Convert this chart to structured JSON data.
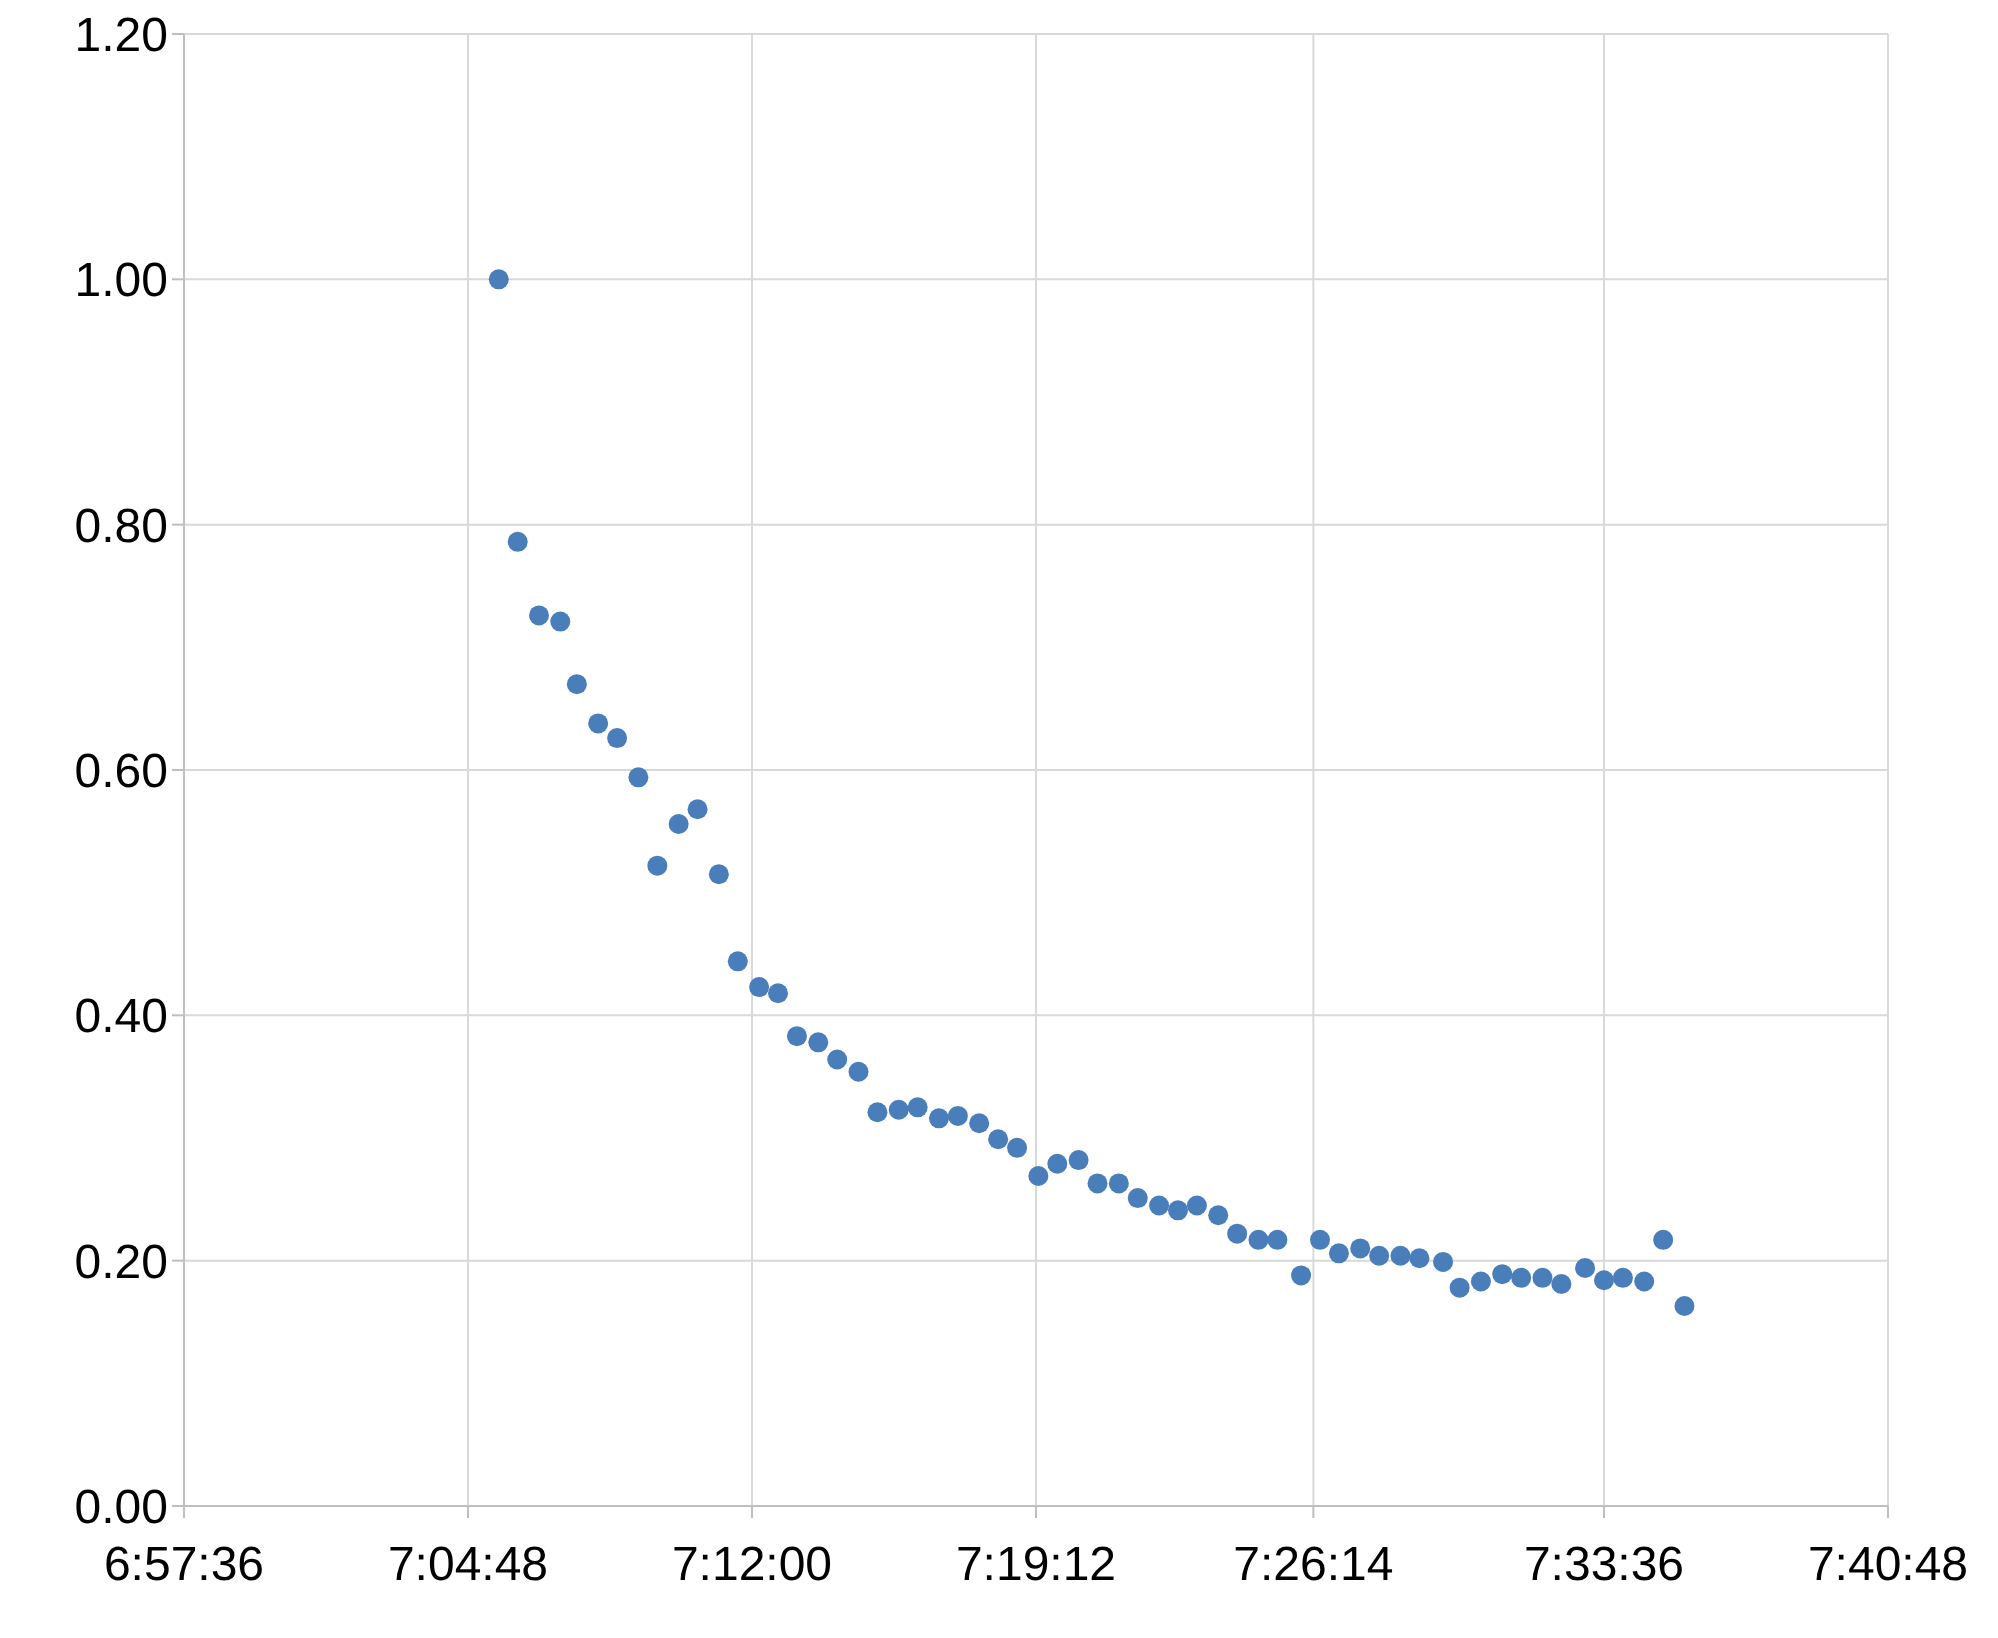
{
  "chart_data": {
    "type": "scatter",
    "marker": "circle",
    "grid": true,
    "xlim": [
      6.96,
      7.68
    ],
    "xticks": [
      {
        "value": 6.96,
        "label": "6:57:36"
      },
      {
        "value": 7.08,
        "label": "7:04:48"
      },
      {
        "value": 7.2,
        "label": "7:12:00"
      },
      {
        "value": 7.32,
        "label": "7:19:12"
      },
      {
        "value": 7.4372,
        "label": "7:26:14"
      },
      {
        "value": 7.56,
        "label": "7:33:36"
      },
      {
        "value": 7.68,
        "label": "7:40:48"
      }
    ],
    "ylim": [
      0,
      1.2
    ],
    "yticks": [
      {
        "value": 0,
        "label": "0.00"
      },
      {
        "value": 0.2,
        "label": "0.20"
      },
      {
        "value": 0.4,
        "label": "0.40"
      },
      {
        "value": 0.6,
        "label": "0.60"
      },
      {
        "value": 0.8,
        "label": "0.80"
      },
      {
        "value": 1,
        "label": "1.00"
      },
      {
        "value": 1.2,
        "label": "1.20"
      }
    ],
    "series": [
      {
        "color": "#4a7ebb",
        "x": [
          7.093,
          7.101,
          7.11,
          7.119,
          7.126,
          7.135,
          7.143,
          7.152,
          7.16,
          7.169,
          7.177,
          7.186,
          7.194,
          7.203,
          7.211,
          7.219,
          7.228,
          7.236,
          7.245,
          7.253,
          7.262,
          7.27,
          7.279,
          7.287,
          7.296,
          7.304,
          7.312,
          7.321,
          7.329,
          7.338,
          7.346,
          7.355,
          7.363,
          7.372,
          7.38,
          7.388,
          7.397,
          7.405,
          7.414,
          7.422,
          7.432,
          7.44,
          7.448,
          7.457,
          7.465,
          7.474,
          7.482,
          7.492,
          7.499,
          7.508,
          7.517,
          7.525,
          7.534,
          7.542,
          7.552,
          7.56,
          7.568,
          7.577,
          7.585,
          7.594
        ],
        "values": [
          1.0,
          0.786,
          0.726,
          0.721,
          0.67,
          0.638,
          0.626,
          0.594,
          0.522,
          0.556,
          0.568,
          0.515,
          0.444,
          0.423,
          0.418,
          0.383,
          0.378,
          0.364,
          0.354,
          0.321,
          0.323,
          0.325,
          0.316,
          0.318,
          0.312,
          0.299,
          0.292,
          0.269,
          0.279,
          0.282,
          0.263,
          0.263,
          0.251,
          0.245,
          0.241,
          0.245,
          0.237,
          0.222,
          0.217,
          0.217,
          0.188,
          0.217,
          0.206,
          0.21,
          0.204,
          0.204,
          0.202,
          0.199,
          0.178,
          0.183,
          0.189,
          0.186,
          0.186,
          0.181,
          0.194,
          0.184,
          0.186,
          0.183,
          0.217,
          0.163
        ]
      }
    ]
  }
}
